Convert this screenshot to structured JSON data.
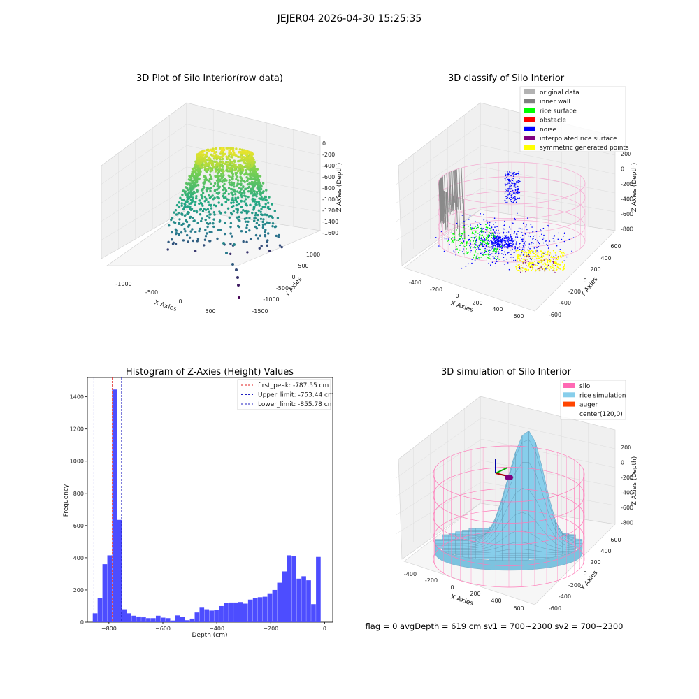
{
  "figure": {
    "suptitle": "JEJER04 2026-04-30 15:25:35",
    "footer": "flag = 0     avgDepth = 619 cm  sv1 = 700~2300  sv2 = 700~2300"
  },
  "chart_data": [
    {
      "type": "scatter",
      "title": "3D Plot of Silo Interior(row data)",
      "xlabel": "X Axies",
      "ylabel": "Y Axies",
      "zlabel": "Z Axies (Depth)",
      "x_ticks": [
        "-1000",
        "-500",
        "0",
        "500"
      ],
      "y_ticks": [
        "1000",
        "500",
        "0",
        "-500",
        "-1000",
        "-1500"
      ],
      "z_ticks": [
        "0",
        "-200",
        "-400",
        "-600",
        "-800",
        "-1000",
        "-1200",
        "-1400",
        "-1600"
      ],
      "colormap": "viridis",
      "description_points": "point cloud of a ring near the top at about z=-100 (yellow) with streaks descending to about z=-1600 (purple)"
    },
    {
      "type": "scatter",
      "title": "3D classify of Silo Interior",
      "xlabel": "X Axies",
      "ylabel": "Y Axies",
      "zlabel": "Z Axies (Depth)",
      "x_ticks": [
        "-400",
        "-200",
        "0",
        "200",
        "400",
        "600"
      ],
      "y_ticks": [
        "600",
        "400",
        "200",
        "0",
        "-200",
        "-400",
        "-600"
      ],
      "z_ticks": [
        "200",
        "0",
        "-200",
        "-400",
        "-600",
        "-800"
      ],
      "legend": [
        {
          "label": "original data",
          "color": "#b3b3b3"
        },
        {
          "label": "inner wall",
          "color": "#808080"
        },
        {
          "label": "rice surface",
          "color": "#00ff00"
        },
        {
          "label": "obstacle",
          "color": "#ff0000"
        },
        {
          "label": "noise",
          "color": "#0000ff"
        },
        {
          "label": "interpolated rice surface",
          "color": "#800080"
        },
        {
          "label": "symmetric generated points",
          "color": "#ffff00"
        }
      ]
    },
    {
      "type": "bar",
      "title": "Histogram of Z-Axies (Height) Values",
      "xlabel": "Depth (cm)",
      "ylabel": "Frequency",
      "xlim": [
        -880,
        30
      ],
      "ylim": [
        0,
        1520
      ],
      "x_ticks": [
        -800,
        -600,
        -400,
        -200,
        0
      ],
      "y_ticks": [
        0,
        200,
        400,
        600,
        800,
        1000,
        1200,
        1400
      ],
      "bar_color": "#4d4dff",
      "bin_width": 18,
      "bin_edges_start": -860,
      "values": [
        55,
        150,
        360,
        415,
        1445,
        635,
        80,
        55,
        40,
        35,
        30,
        25,
        25,
        40,
        28,
        25,
        10,
        42,
        32,
        12,
        22,
        60,
        90,
        80,
        72,
        75,
        100,
        120,
        122,
        122,
        125,
        115,
        140,
        150,
        155,
        158,
        175,
        200,
        245,
        315,
        415,
        410,
        270,
        285,
        260,
        112,
        405
      ],
      "lines": [
        {
          "label": "first_peak: -787.55 cm",
          "x": -787.55,
          "color": "#e02020"
        },
        {
          "label": "Upper_limit: -753.44 cm",
          "x": -753.44,
          "color": "#2020c0"
        },
        {
          "label": "Lower_limit: -855.78 cm",
          "x": -855.78,
          "color": "#2020c0"
        }
      ]
    },
    {
      "type": "area",
      "title": "3D simulation of Silo Interior",
      "xlabel": "X Axies",
      "ylabel": "Y Axies",
      "zlabel": "Z Axies (Depth)",
      "x_ticks": [
        "-400",
        "-200",
        "0",
        "200",
        "400",
        "600"
      ],
      "y_ticks": [
        "600",
        "400",
        "200",
        "0",
        "-200",
        "-400",
        "-600"
      ],
      "z_ticks": [
        "200",
        "0",
        "-200",
        "-400",
        "-600",
        "-800"
      ],
      "legend": [
        {
          "label": "silo",
          "color": "#ff69b4"
        },
        {
          "label": "rice simulation",
          "color": "#87ceeb"
        },
        {
          "label": "auger",
          "color": "#ff4500"
        },
        {
          "label": "center(120,0)",
          "color": ""
        }
      ]
    }
  ]
}
